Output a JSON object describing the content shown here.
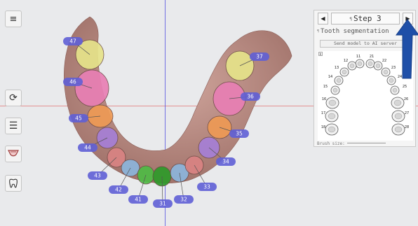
{
  "toolbar": {
    "menu_icon": "hamburger-menu-icon",
    "tools": [
      {
        "name": "reset-rotation-icon",
        "glyph": "⟳"
      },
      {
        "name": "layers-icon",
        "glyph": "☰"
      },
      {
        "name": "jaw-view-icon",
        "glyph": "◡"
      },
      {
        "name": "tooth-icon",
        "glyph": "ɷ"
      }
    ]
  },
  "panel": {
    "prev_glyph": "◀",
    "next_glyph": "▶",
    "step_prefix": "¶",
    "step_title": "Step 3",
    "segmentation_prefix": "¶",
    "segmentation_label": "Tooth segmentation",
    "send_button": "Send model to AI server",
    "brush_label": "Brush size:",
    "chart_numbers": [
      "11",
      "12",
      "13",
      "14",
      "15",
      "16",
      "17",
      "18",
      "21",
      "22",
      "23",
      "24",
      "25",
      "26",
      "27",
      "28"
    ]
  },
  "teeth": [
    {
      "id": "47",
      "color": "#e6e38a"
    },
    {
      "id": "46",
      "color": "#e87fb4"
    },
    {
      "id": "45",
      "color": "#ee9a55"
    },
    {
      "id": "44",
      "color": "#a67fd6"
    },
    {
      "id": "43",
      "color": "#d98383"
    },
    {
      "id": "42",
      "color": "#8cb5dc"
    },
    {
      "id": "41",
      "color": "#4fbb45"
    },
    {
      "id": "31",
      "color": "#2e9a2a"
    },
    {
      "id": "32",
      "color": "#8cb5dc"
    },
    {
      "id": "33",
      "color": "#d98383"
    },
    {
      "id": "34",
      "color": "#a67fd6"
    },
    {
      "id": "35",
      "color": "#ee9a55"
    },
    {
      "id": "36",
      "color": "#e87fb4"
    },
    {
      "id": "37",
      "color": "#e6e38a"
    }
  ],
  "colors": {
    "label_fill": "#5f5fd6",
    "gum": "#b98a82",
    "arrow": "#1f4fa8",
    "axis_red": "#e07070",
    "axis_blue": "#4a4ae0"
  }
}
